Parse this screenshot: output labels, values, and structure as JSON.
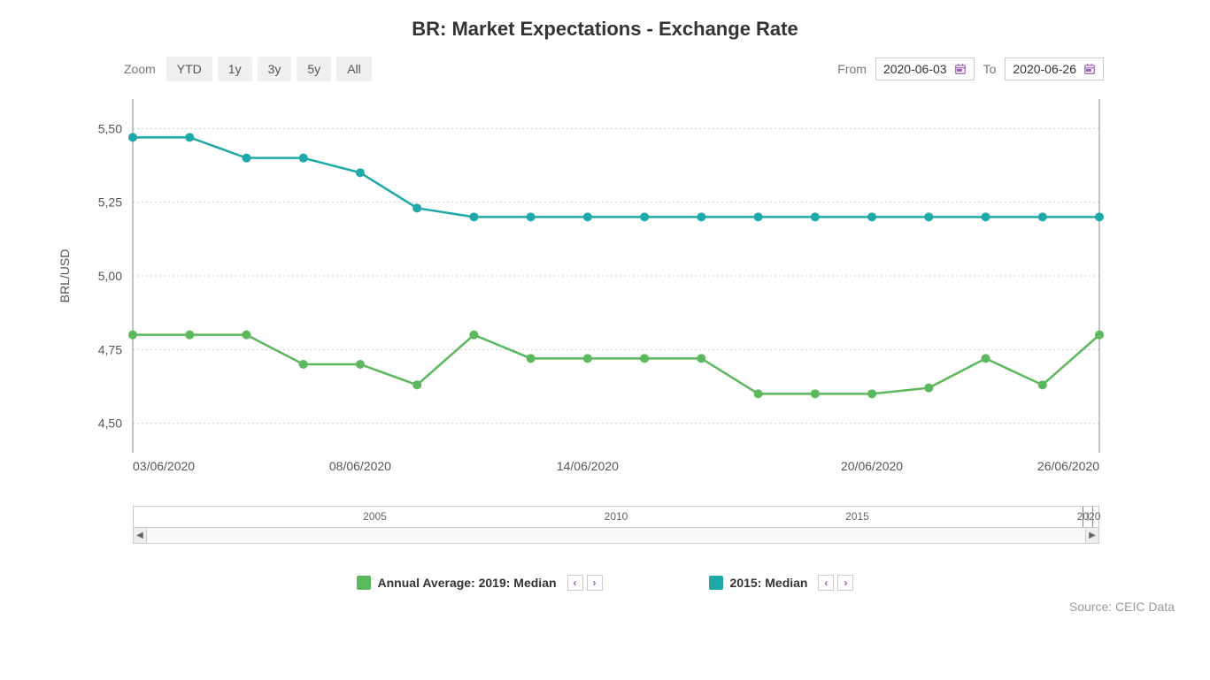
{
  "title": "BR: Market Expectations - Exchange Rate",
  "zoom": {
    "label": "Zoom",
    "buttons": [
      "YTD",
      "1y",
      "3y",
      "5y",
      "All"
    ]
  },
  "date_range": {
    "from_label": "From",
    "from_value": "2020-06-03",
    "to_label": "To",
    "to_value": "2020-06-26"
  },
  "chart": {
    "type": "line",
    "background_color": "#ffffff",
    "grid_color": "#cccccc",
    "grid_dasharray": "2,3",
    "axis_color": "#888888",
    "y_axis": {
      "label": "BRL/USD",
      "min": 4.4,
      "max": 5.6,
      "ticks": [
        4.5,
        4.75,
        5.0,
        5.25,
        5.5
      ],
      "tick_labels": [
        "4,50",
        "4,75",
        "5,00",
        "5,25",
        "5,50"
      ],
      "label_fontsize": 14
    },
    "x_axis": {
      "min_index": 0,
      "max_index": 17,
      "tick_indices": [
        0,
        4,
        8,
        13,
        17
      ],
      "tick_labels": [
        "03/06/2020",
        "08/06/2020",
        "14/06/2020",
        "20/06/2020",
        "26/06/2020"
      ]
    },
    "series": [
      {
        "name": "Annual Average: 2019: Median",
        "color": "#5cb85c",
        "marker_color": "#5cb85c",
        "line_width": 2.5,
        "marker_radius": 5,
        "y": [
          4.8,
          4.8,
          4.8,
          4.7,
          4.7,
          4.63,
          4.8,
          4.72,
          4.72,
          4.72,
          4.72,
          4.6,
          4.6,
          4.6,
          4.62,
          4.72,
          4.63,
          4.8
        ]
      },
      {
        "name": "2015: Median",
        "color": "#1fa8a8",
        "marker_color": "#1fa8a8",
        "line_width": 2.5,
        "marker_radius": 5,
        "y": [
          5.47,
          5.47,
          5.4,
          5.4,
          5.35,
          5.23,
          5.2,
          5.2,
          5.2,
          5.2,
          5.2,
          5.2,
          5.2,
          5.2,
          5.2,
          5.2,
          5.2,
          5.2
        ]
      }
    ]
  },
  "minimap": {
    "ticks": [
      "2005",
      "2010",
      "2015",
      "2020"
    ],
    "tick_positions_pct": [
      25,
      50,
      75,
      99
    ]
  },
  "legend": {
    "items": [
      {
        "label": "Annual Average: 2019: Median",
        "color": "#5cb85c"
      },
      {
        "label": "2015: Median",
        "color": "#1fa8a8"
      }
    ]
  },
  "source": "Source: CEIC Data"
}
